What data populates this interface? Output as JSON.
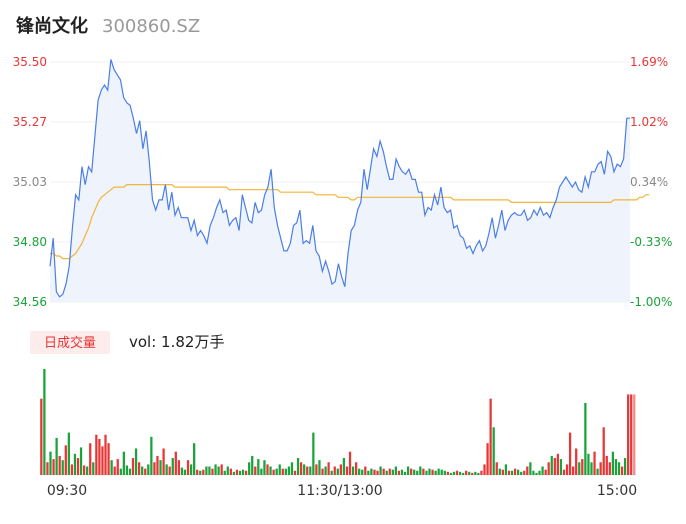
{
  "header": {
    "name": "锋尚文化",
    "code": "300860.SZ"
  },
  "colors": {
    "up": "#e83535",
    "down": "#1aa33a",
    "neutral": "#888888",
    "price_line": "#4a7ee8",
    "price_fill": "#eef3fc",
    "avg_line": "#f3b43a",
    "vol_tag_text": "#e83535",
    "vol_tag_bg": "#fdecec"
  },
  "chart_data": {
    "type": "line",
    "price_axis": {
      "labels": [
        "35.50",
        "35.27",
        "35.03",
        "34.80",
        "34.56"
      ],
      "ylim": [
        34.56,
        35.5
      ]
    },
    "pct_axis": {
      "labels": [
        "1.69%",
        "1.02%",
        "0.34%",
        "-0.33%",
        "-1.00%"
      ]
    },
    "time_labels": [
      "09:30",
      "11:30/13:00",
      "15:00"
    ],
    "series": [
      {
        "values": [
          34.7,
          34.81,
          34.6,
          34.58,
          34.59,
          34.63,
          34.7,
          34.85,
          34.98,
          34.96,
          35.09,
          35.02,
          35.09,
          35.07,
          35.21,
          35.35,
          35.39,
          35.41,
          35.39,
          35.51,
          35.47,
          35.45,
          35.43,
          35.36,
          35.34,
          35.33,
          35.28,
          35.22,
          35.27,
          35.16,
          35.23,
          35.11,
          34.96,
          34.92,
          34.96,
          34.96,
          35.02,
          34.92,
          34.99,
          34.9,
          34.93,
          34.89,
          34.89,
          34.89,
          34.84,
          34.88,
          34.82,
          34.84,
          34.82,
          34.79,
          34.86,
          34.89,
          34.93,
          34.96,
          34.91,
          34.92,
          34.86,
          34.88,
          34.89,
          34.84,
          34.98,
          34.93,
          34.88,
          34.87,
          34.95,
          34.91,
          34.92,
          34.98,
          35.01,
          35.08,
          34.93,
          34.86,
          34.81,
          34.76,
          34.76,
          34.79,
          34.86,
          34.87,
          34.92,
          34.79,
          34.8,
          34.79,
          34.86,
          34.76,
          34.74,
          34.68,
          34.72,
          34.68,
          34.63,
          34.64,
          34.71,
          34.66,
          34.62,
          34.75,
          34.84,
          34.86,
          34.92,
          34.95,
          35.08,
          35.0,
          35.08,
          35.16,
          35.13,
          35.19,
          35.15,
          35.09,
          35.04,
          35.04,
          35.12,
          35.09,
          35.07,
          35.06,
          35.08,
          35.04,
          35.04,
          34.99,
          34.99,
          34.9,
          34.93,
          34.92,
          34.98,
          34.94,
          35.01,
          34.93,
          34.91,
          34.92,
          34.85,
          34.86,
          34.82,
          34.81,
          34.77,
          34.78,
          34.75,
          34.78,
          34.8,
          34.76,
          34.78,
          34.83,
          34.89,
          34.81,
          34.86,
          34.92,
          34.84,
          34.88,
          34.9,
          34.91,
          34.9,
          34.9,
          34.92,
          34.88,
          34.89,
          34.92,
          34.9,
          34.93,
          34.9,
          34.91,
          34.89,
          34.93,
          34.96,
          35.01,
          35.03,
          35.05,
          35.03,
          35.01,
          35.03,
          35.0,
          34.99,
          35.05,
          35.01,
          35.07,
          35.07,
          35.1,
          35.11,
          35.06,
          35.15,
          35.13,
          35.07,
          35.1,
          35.09,
          35.12,
          35.28,
          35.28
        ],
        "name": ""
      },
      {
        "values": [
          34.75,
          34.75,
          34.74,
          34.74,
          34.73,
          34.73,
          34.73,
          34.74,
          34.75,
          34.77,
          34.79,
          34.82,
          34.85,
          34.89,
          34.92,
          34.95,
          34.97,
          34.98,
          34.99,
          35.0,
          35.01,
          35.01,
          35.01,
          35.01,
          35.02,
          35.02,
          35.02,
          35.02,
          35.02,
          35.02,
          35.02,
          35.02,
          35.02,
          35.02,
          35.02,
          35.02,
          35.02,
          35.02,
          35.02,
          35.01,
          35.01,
          35.01,
          35.01,
          35.01,
          35.01,
          35.01,
          35.01,
          35.01,
          35.01,
          35.01,
          35.01,
          35.01,
          35.01,
          35.01,
          35.01,
          35.01,
          35.0,
          35.0,
          35.0,
          35.0,
          35.0,
          35.0,
          35.0,
          35.0,
          35.0,
          35.0,
          35.0,
          35.0,
          35.0,
          35.0,
          35.0,
          35.0,
          34.99,
          34.99,
          34.99,
          34.99,
          34.99,
          34.99,
          34.99,
          34.99,
          34.99,
          34.99,
          34.99,
          34.98,
          34.98,
          34.98,
          34.98,
          34.98,
          34.98,
          34.98,
          34.97,
          34.97,
          34.97,
          34.97,
          34.96,
          34.96,
          34.97,
          34.97,
          34.97,
          34.97,
          34.97,
          34.97,
          34.97,
          34.97,
          34.97,
          34.97,
          34.97,
          34.97,
          34.97,
          34.97,
          34.97,
          34.97,
          34.97,
          34.97,
          34.97,
          34.97,
          34.97,
          34.97,
          34.97,
          34.97,
          34.97,
          34.97,
          34.97,
          34.97,
          34.97,
          34.97,
          34.96,
          34.96,
          34.96,
          34.96,
          34.96,
          34.96,
          34.96,
          34.96,
          34.96,
          34.96,
          34.96,
          34.96,
          34.96,
          34.96,
          34.96,
          34.96,
          34.96,
          34.96,
          34.95,
          34.95,
          34.95,
          34.95,
          34.95,
          34.95,
          34.95,
          34.95,
          34.95,
          34.95,
          34.95,
          34.95,
          34.95,
          34.95,
          34.95,
          34.95,
          34.95,
          34.95,
          34.95,
          34.95,
          34.95,
          34.95,
          34.95,
          34.95,
          34.95,
          34.95,
          34.95,
          34.95,
          34.95,
          34.95,
          34.95,
          34.95,
          34.96,
          34.96,
          34.96,
          34.96,
          34.96,
          34.96,
          34.96,
          34.96,
          34.97,
          34.97,
          34.98,
          34.98
        ],
        "name": ""
      }
    ],
    "volume": {
      "label": "日成交量",
      "summary": "vol: 1.82万手",
      "bars": [
        {
          "v": 0.72,
          "d": "up"
        },
        {
          "v": 1.0,
          "d": "down"
        },
        {
          "v": 0.12,
          "d": "up"
        },
        {
          "v": 0.22,
          "d": "down"
        },
        {
          "v": 0.15,
          "d": "up"
        },
        {
          "v": 0.35,
          "d": "down"
        },
        {
          "v": 0.18,
          "d": "up"
        },
        {
          "v": 0.14,
          "d": "down"
        },
        {
          "v": 0.28,
          "d": "up"
        },
        {
          "v": 0.4,
          "d": "down"
        },
        {
          "v": 0.1,
          "d": "up"
        },
        {
          "v": 0.2,
          "d": "down"
        },
        {
          "v": 0.16,
          "d": "up"
        },
        {
          "v": 0.26,
          "d": "down"
        },
        {
          "v": 0.09,
          "d": "up"
        },
        {
          "v": 0.08,
          "d": "down"
        },
        {
          "v": 0.3,
          "d": "up"
        },
        {
          "v": 0.12,
          "d": "down"
        },
        {
          "v": 0.38,
          "d": "up"
        },
        {
          "v": 0.34,
          "d": "up"
        },
        {
          "v": 0.27,
          "d": "up"
        },
        {
          "v": 0.38,
          "d": "up"
        },
        {
          "v": 0.3,
          "d": "up"
        },
        {
          "v": 0.14,
          "d": "down"
        },
        {
          "v": 0.08,
          "d": "up"
        },
        {
          "v": 0.15,
          "d": "up"
        },
        {
          "v": 0.06,
          "d": "down"
        },
        {
          "v": 0.22,
          "d": "down"
        },
        {
          "v": 0.09,
          "d": "down"
        },
        {
          "v": 0.06,
          "d": "down"
        },
        {
          "v": 0.16,
          "d": "up"
        },
        {
          "v": 0.25,
          "d": "down"
        },
        {
          "v": 0.12,
          "d": "up"
        },
        {
          "v": 0.08,
          "d": "down"
        },
        {
          "v": 0.06,
          "d": "up"
        },
        {
          "v": 0.1,
          "d": "down"
        },
        {
          "v": 0.36,
          "d": "down"
        },
        {
          "v": 0.12,
          "d": "up"
        },
        {
          "v": 0.18,
          "d": "up"
        },
        {
          "v": 0.14,
          "d": "down"
        },
        {
          "v": 0.25,
          "d": "up"
        },
        {
          "v": 0.1,
          "d": "down"
        },
        {
          "v": 0.08,
          "d": "up"
        },
        {
          "v": 0.16,
          "d": "down"
        },
        {
          "v": 0.22,
          "d": "up"
        },
        {
          "v": 0.14,
          "d": "up"
        },
        {
          "v": 0.07,
          "d": "down"
        },
        {
          "v": 0.05,
          "d": "down"
        },
        {
          "v": 0.14,
          "d": "up"
        },
        {
          "v": 0.1,
          "d": "down"
        },
        {
          "v": 0.3,
          "d": "down"
        },
        {
          "v": 0.05,
          "d": "up"
        },
        {
          "v": 0.04,
          "d": "down"
        },
        {
          "v": 0.05,
          "d": "up"
        },
        {
          "v": 0.08,
          "d": "down"
        },
        {
          "v": 0.08,
          "d": "down"
        },
        {
          "v": 0.06,
          "d": "up"
        },
        {
          "v": 0.1,
          "d": "down"
        },
        {
          "v": 0.08,
          "d": "down"
        },
        {
          "v": 0.1,
          "d": "up"
        },
        {
          "v": 0.04,
          "d": "down"
        },
        {
          "v": 0.08,
          "d": "down"
        },
        {
          "v": 0.06,
          "d": "up"
        },
        {
          "v": 0.03,
          "d": "down"
        },
        {
          "v": 0.05,
          "d": "up"
        },
        {
          "v": 0.04,
          "d": "down"
        },
        {
          "v": 0.05,
          "d": "down"
        },
        {
          "v": 0.04,
          "d": "up"
        },
        {
          "v": 0.12,
          "d": "down"
        },
        {
          "v": 0.18,
          "d": "down"
        },
        {
          "v": 0.08,
          "d": "up"
        },
        {
          "v": 0.15,
          "d": "down"
        },
        {
          "v": 0.06,
          "d": "down"
        },
        {
          "v": 0.14,
          "d": "down"
        },
        {
          "v": 0.1,
          "d": "up"
        },
        {
          "v": 0.08,
          "d": "down"
        },
        {
          "v": 0.05,
          "d": "up"
        },
        {
          "v": 0.06,
          "d": "down"
        },
        {
          "v": 0.1,
          "d": "down"
        },
        {
          "v": 0.06,
          "d": "up"
        },
        {
          "v": 0.06,
          "d": "down"
        },
        {
          "v": 0.08,
          "d": "down"
        },
        {
          "v": 0.12,
          "d": "down"
        },
        {
          "v": 0.04,
          "d": "up"
        },
        {
          "v": 0.16,
          "d": "down"
        },
        {
          "v": 0.12,
          "d": "up"
        },
        {
          "v": 0.1,
          "d": "down"
        },
        {
          "v": 0.08,
          "d": "up"
        },
        {
          "v": 0.08,
          "d": "down"
        },
        {
          "v": 0.4,
          "d": "down"
        },
        {
          "v": 0.1,
          "d": "up"
        },
        {
          "v": 0.14,
          "d": "down"
        },
        {
          "v": 0.06,
          "d": "up"
        },
        {
          "v": 0.08,
          "d": "down"
        },
        {
          "v": 0.12,
          "d": "up"
        },
        {
          "v": 0.04,
          "d": "down"
        },
        {
          "v": 0.08,
          "d": "up"
        },
        {
          "v": 0.06,
          "d": "down"
        },
        {
          "v": 0.1,
          "d": "up"
        },
        {
          "v": 0.16,
          "d": "down"
        },
        {
          "v": 0.08,
          "d": "up"
        },
        {
          "v": 0.22,
          "d": "up"
        },
        {
          "v": 0.08,
          "d": "down"
        },
        {
          "v": 0.12,
          "d": "up"
        },
        {
          "v": 0.06,
          "d": "down"
        },
        {
          "v": 0.05,
          "d": "down"
        },
        {
          "v": 0.08,
          "d": "up"
        },
        {
          "v": 0.04,
          "d": "down"
        },
        {
          "v": 0.06,
          "d": "down"
        },
        {
          "v": 0.05,
          "d": "up"
        },
        {
          "v": 0.04,
          "d": "up"
        },
        {
          "v": 0.08,
          "d": "down"
        },
        {
          "v": 0.06,
          "d": "up"
        },
        {
          "v": 0.04,
          "d": "down"
        },
        {
          "v": 0.06,
          "d": "up"
        },
        {
          "v": 0.05,
          "d": "down"
        },
        {
          "v": 0.08,
          "d": "down"
        },
        {
          "v": 0.04,
          "d": "up"
        },
        {
          "v": 0.05,
          "d": "down"
        },
        {
          "v": 0.03,
          "d": "down"
        },
        {
          "v": 0.08,
          "d": "down"
        },
        {
          "v": 0.06,
          "d": "up"
        },
        {
          "v": 0.05,
          "d": "down"
        },
        {
          "v": 0.04,
          "d": "down"
        },
        {
          "v": 0.08,
          "d": "down"
        },
        {
          "v": 0.06,
          "d": "up"
        },
        {
          "v": 0.04,
          "d": "down"
        },
        {
          "v": 0.06,
          "d": "down"
        },
        {
          "v": 0.05,
          "d": "up"
        },
        {
          "v": 0.04,
          "d": "down"
        },
        {
          "v": 0.06,
          "d": "down"
        },
        {
          "v": 0.05,
          "d": "down"
        },
        {
          "v": 0.04,
          "d": "down"
        },
        {
          "v": 0.03,
          "d": "up"
        },
        {
          "v": 0.02,
          "d": "down"
        },
        {
          "v": 0.03,
          "d": "down"
        },
        {
          "v": 0.04,
          "d": "up"
        },
        {
          "v": 0.03,
          "d": "down"
        },
        {
          "v": 0.02,
          "d": "down"
        },
        {
          "v": 0.04,
          "d": "up"
        },
        {
          "v": 0.03,
          "d": "down"
        },
        {
          "v": 0.02,
          "d": "up"
        },
        {
          "v": 0.03,
          "d": "down"
        },
        {
          "v": 0.02,
          "d": "down"
        },
        {
          "v": 0.04,
          "d": "up"
        },
        {
          "v": 0.1,
          "d": "up"
        },
        {
          "v": 0.3,
          "d": "up"
        },
        {
          "v": 0.72,
          "d": "up"
        },
        {
          "v": 0.45,
          "d": "down"
        },
        {
          "v": 0.12,
          "d": "up"
        },
        {
          "v": 0.06,
          "d": "down"
        },
        {
          "v": 0.05,
          "d": "up"
        },
        {
          "v": 0.1,
          "d": "down"
        },
        {
          "v": 0.04,
          "d": "up"
        },
        {
          "v": 0.04,
          "d": "down"
        },
        {
          "v": 0.06,
          "d": "up"
        },
        {
          "v": 0.05,
          "d": "down"
        },
        {
          "v": 0.03,
          "d": "down"
        },
        {
          "v": 0.04,
          "d": "up"
        },
        {
          "v": 0.08,
          "d": "up"
        },
        {
          "v": 0.12,
          "d": "down"
        },
        {
          "v": 0.04,
          "d": "down"
        },
        {
          "v": 0.02,
          "d": "down"
        },
        {
          "v": 0.04,
          "d": "down"
        },
        {
          "v": 0.08,
          "d": "down"
        },
        {
          "v": 0.05,
          "d": "up"
        },
        {
          "v": 0.12,
          "d": "up"
        },
        {
          "v": 0.18,
          "d": "down"
        },
        {
          "v": 0.16,
          "d": "up"
        },
        {
          "v": 0.2,
          "d": "up"
        },
        {
          "v": 0.15,
          "d": "down"
        },
        {
          "v": 0.05,
          "d": "up"
        },
        {
          "v": 0.1,
          "d": "up"
        },
        {
          "v": 0.4,
          "d": "up"
        },
        {
          "v": 0.08,
          "d": "up"
        },
        {
          "v": 0.25,
          "d": "up"
        },
        {
          "v": 0.12,
          "d": "down"
        },
        {
          "v": 0.15,
          "d": "up"
        },
        {
          "v": 0.68,
          "d": "down"
        },
        {
          "v": 0.2,
          "d": "down"
        },
        {
          "v": 0.12,
          "d": "down"
        },
        {
          "v": 0.22,
          "d": "up"
        },
        {
          "v": 0.06,
          "d": "down"
        },
        {
          "v": 0.12,
          "d": "up"
        },
        {
          "v": 0.45,
          "d": "up"
        },
        {
          "v": 0.18,
          "d": "up"
        },
        {
          "v": 0.12,
          "d": "up"
        },
        {
          "v": 0.22,
          "d": "down"
        },
        {
          "v": 0.15,
          "d": "down"
        },
        {
          "v": 0.12,
          "d": "down"
        },
        {
          "v": 0.08,
          "d": "up"
        },
        {
          "v": 0.16,
          "d": "down"
        },
        {
          "v": 0.76,
          "d": "up"
        },
        {
          "v": 0.76,
          "d": "up"
        },
        {
          "v": 0.76,
          "d": "neutral"
        }
      ]
    }
  }
}
